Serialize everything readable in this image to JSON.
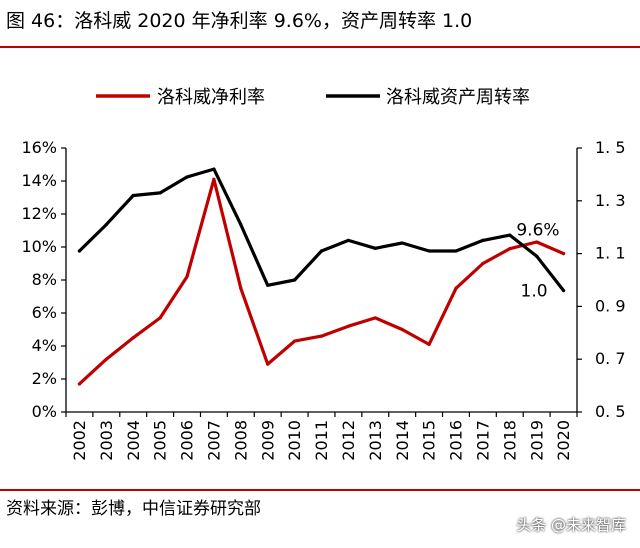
{
  "title": "图 46：洛科威 2020 年净利率 9.6%，资产周转率 1.0",
  "source": "资料来源：彭博，中信证券研究部",
  "watermark": "头条 @未来智库",
  "colors": {
    "rule": "#c00000",
    "net_margin": "#c00000",
    "asset_turnover": "#000000"
  },
  "chart_data": {
    "type": "line",
    "title": "",
    "x": [
      "2002",
      "2003",
      "2004",
      "2005",
      "2006",
      "2007",
      "2008",
      "2009",
      "2010",
      "2011",
      "2012",
      "2013",
      "2014",
      "2015",
      "2016",
      "2017",
      "2018",
      "2019",
      "2020"
    ],
    "series": [
      {
        "name": "洛科威净利率",
        "axis": "left",
        "values": [
          1.7,
          3.2,
          4.5,
          5.7,
          8.2,
          14.1,
          7.5,
          2.9,
          4.3,
          4.6,
          5.2,
          5.7,
          5.0,
          4.1,
          7.5,
          9.0,
          9.9,
          10.3,
          9.6
        ]
      },
      {
        "name": "洛科威资产周转率",
        "axis": "right",
        "values": [
          1.11,
          1.21,
          1.32,
          1.33,
          1.39,
          1.42,
          1.21,
          0.98,
          1.0,
          1.11,
          1.15,
          1.12,
          1.14,
          1.11,
          1.11,
          1.15,
          1.17,
          1.09,
          0.96
        ]
      }
    ],
    "y_left": {
      "ylim": [
        0,
        16
      ],
      "ticks": [
        "0%",
        "2%",
        "4%",
        "6%",
        "8%",
        "10%",
        "12%",
        "14%",
        "16%"
      ]
    },
    "y_right": {
      "ylim": [
        0.5,
        1.5
      ],
      "ticks": [
        "0. 5",
        "0. 7",
        "0. 9",
        "1. 1",
        "1. 3",
        "1. 5"
      ]
    },
    "annotations": [
      {
        "text": "9.6%",
        "series": "洛科威净利率",
        "x": "2020",
        "value": 9.6
      },
      {
        "text": "1.0",
        "series": "洛科威资产周转率",
        "x": "2020",
        "value": 0.96
      }
    ],
    "grid": false,
    "legend_position": "top"
  }
}
